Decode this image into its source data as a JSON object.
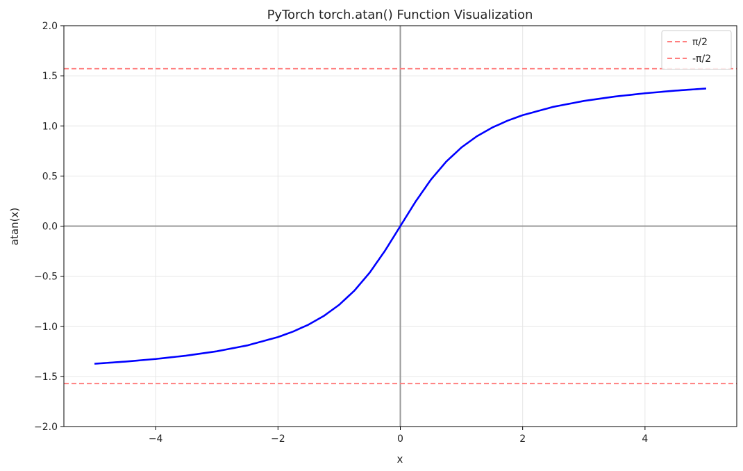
{
  "chart_data": {
    "type": "line",
    "title": "PyTorch torch.atan() Function Visualization",
    "xlabel": "x",
    "ylabel": "atan(x)",
    "xlim": [
      -5.5,
      5.5
    ],
    "ylim": [
      -2.0,
      2.0
    ],
    "grid": true,
    "legend_position": "top-right",
    "x_ticks": [
      {
        "value": -4,
        "label": "−4"
      },
      {
        "value": -2,
        "label": "−2"
      },
      {
        "value": 0,
        "label": "0"
      },
      {
        "value": 2,
        "label": "2"
      },
      {
        "value": 4,
        "label": "4"
      }
    ],
    "y_ticks": [
      {
        "value": -2.0,
        "label": "−2.0"
      },
      {
        "value": -1.5,
        "label": "−1.5"
      },
      {
        "value": -1.0,
        "label": "−1.0"
      },
      {
        "value": -0.5,
        "label": "−0.5"
      },
      {
        "value": 0.0,
        "label": "0.0"
      },
      {
        "value": 0.5,
        "label": "0.5"
      },
      {
        "value": 1.0,
        "label": "1.0"
      },
      {
        "value": 1.5,
        "label": "1.5"
      },
      {
        "value": 2.0,
        "label": "2.0"
      }
    ],
    "series": [
      {
        "color": "#0000ff",
        "x": [
          -5,
          -4.5,
          -4,
          -3.5,
          -3,
          -2.5,
          -2,
          -1.75,
          -1.5,
          -1.25,
          -1,
          -0.75,
          -0.5,
          -0.25,
          0,
          0.25,
          0.5,
          0.75,
          1,
          1.25,
          1.5,
          1.75,
          2,
          2.5,
          3,
          3.5,
          4,
          4.5,
          5
        ],
        "y": [
          -1.3734,
          -1.3521,
          -1.3258,
          -1.2925,
          -1.249,
          -1.1903,
          -1.1071,
          -1.0517,
          -0.9828,
          -0.8961,
          -0.7854,
          -0.6435,
          -0.4636,
          -0.245,
          0,
          0.245,
          0.4636,
          0.6435,
          0.7854,
          0.8961,
          0.9828,
          1.0517,
          1.1071,
          1.1903,
          1.249,
          1.2925,
          1.3258,
          1.3521,
          1.3734
        ]
      }
    ],
    "reference_lines": [
      {
        "name": "π/2",
        "y": 1.5708,
        "color": "#ff7f7f",
        "style": "dashed"
      },
      {
        "name": "-π/2",
        "y": -1.5708,
        "color": "#ff7f7f",
        "style": "dashed"
      }
    ],
    "axis_lines": [
      {
        "orientation": "horizontal",
        "value": 0,
        "color": "#999999"
      },
      {
        "orientation": "vertical",
        "value": 0,
        "color": "#999999"
      }
    ]
  }
}
